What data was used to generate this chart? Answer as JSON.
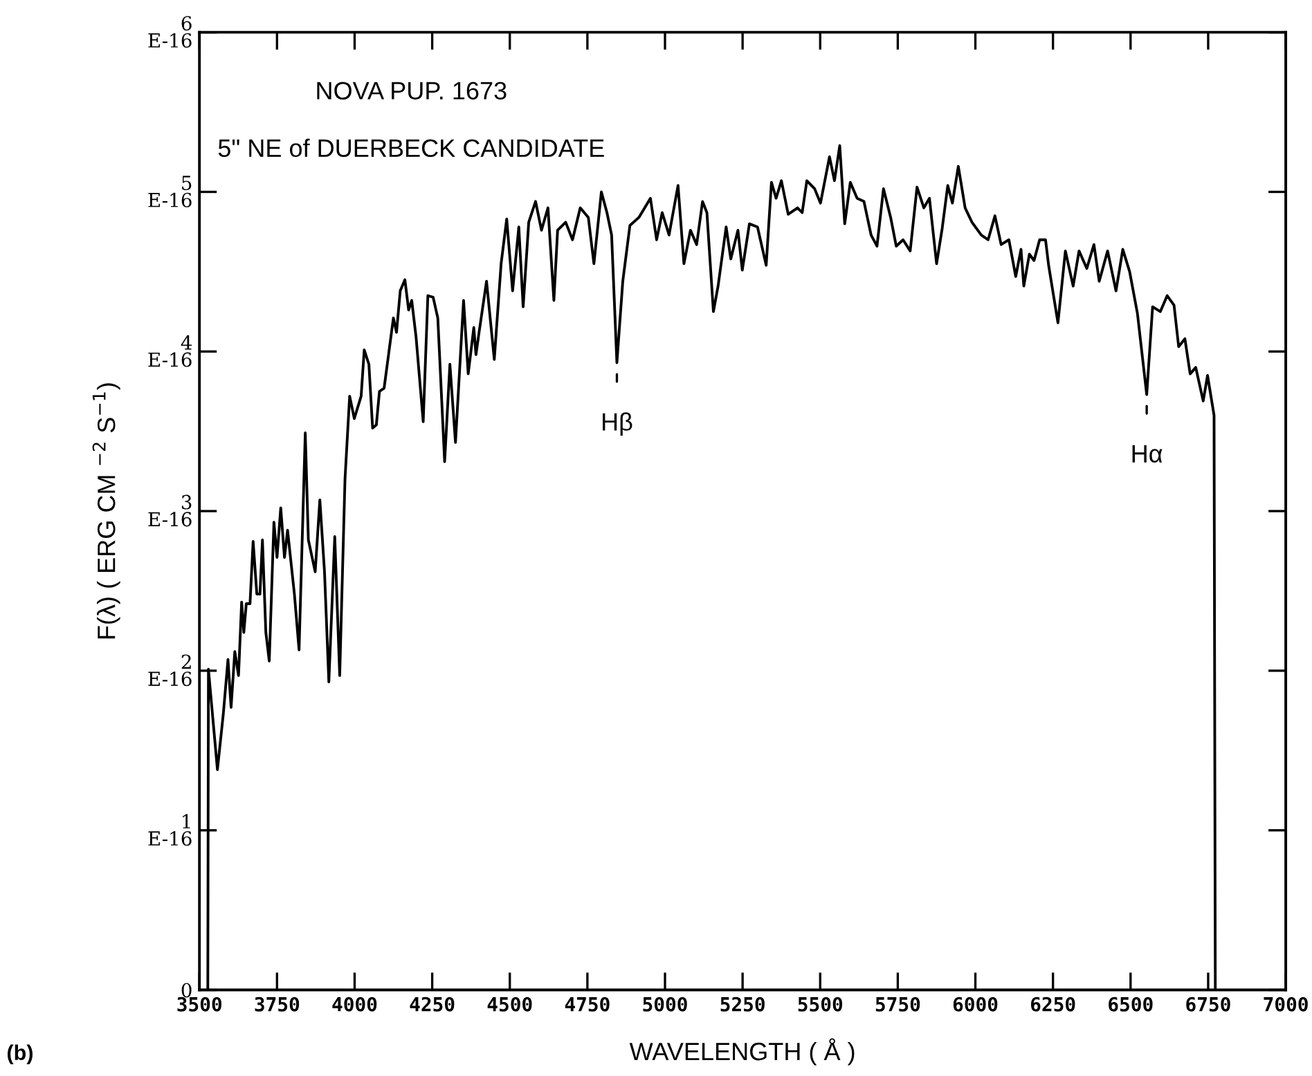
{
  "chart_data": {
    "type": "line",
    "title": "NOVA PUP. 1673",
    "subtitle": "5\" NE of DUERBECK CANDIDATE",
    "xlabel": "WAVELENGTH ( Å )",
    "ylabel": "F(λ) ( ERG CM $^{−2}$ S$^{−1}$)",
    "annotations": [
      {
        "text": "Hβ",
        "x": 4845,
        "y": 3.93e-16
      },
      {
        "text": "Hα",
        "x": 6552,
        "y": 3.73e-16
      },
      "(b)"
    ],
    "xlim": [
      3500,
      7000
    ],
    "xticks": [
      3500,
      3750,
      4000,
      4250,
      4500,
      4750,
      5000,
      5250,
      5500,
      5750,
      6000,
      6250,
      6500,
      6750,
      7000
    ],
    "ylim": [
      0,
      6e-16
    ],
    "yticks": [
      0,
      {
        "value": 1e-16,
        "label": "1E-16"
      },
      {
        "value": 2e-16,
        "label": "2E-16"
      },
      {
        "value": 3e-16,
        "label": "3E-16"
      },
      {
        "value": 4e-16,
        "label": "4E-16"
      },
      {
        "value": 5e-16,
        "label": "5E-16"
      },
      {
        "value": 6e-16,
        "label": "6E-16"
      }
    ],
    "grid": false,
    "marker": "none",
    "line_style": "solid",
    "series": [
      {
        "color": "#000000",
        "x": [
          3527,
          3529,
          3558,
          3577,
          3592,
          3602,
          3614,
          3626,
          3636,
          3643,
          3651,
          3663,
          3673,
          3685,
          3695,
          3703,
          3714,
          3725,
          3740,
          3750,
          3762,
          3774,
          3784,
          3806,
          3821,
          3841,
          3851,
          3873,
          3888,
          3903,
          3917,
          3936,
          3952,
          3969,
          3984,
          3999,
          4021,
          4031,
          4046,
          4058,
          4070,
          4080,
          4095,
          4125,
          4135,
          4147,
          4162,
          4174,
          4184,
          4198,
          4221,
          4236,
          4253,
          4268,
          4290,
          4307,
          4325,
          4351,
          4366,
          4384,
          4391,
          4401,
          4425,
          4450,
          4472,
          4490,
          4509,
          4529,
          4543,
          4561,
          4583,
          4602,
          4623,
          4642,
          4654,
          4680,
          4702,
          4727,
          4753,
          4771,
          4795,
          4813,
          4828,
          4845,
          4864,
          4887,
          4916,
          4953,
          4973,
          4991,
          5013,
          5042,
          5061,
          5082,
          5102,
          5121,
          5135,
          5156,
          5171,
          5197,
          5212,
          5235,
          5249,
          5272,
          5298,
          5326,
          5343,
          5358,
          5375,
          5397,
          5427,
          5442,
          5457,
          5482,
          5501,
          5530,
          5546,
          5563,
          5579,
          5597,
          5619,
          5641,
          5664,
          5683,
          5704,
          5727,
          5745,
          5767,
          5790,
          5812,
          5834,
          5852,
          5875,
          5893,
          5911,
          5926,
          5945,
          5967,
          5989,
          6019,
          6041,
          6063,
          6083,
          6108,
          6130,
          6147,
          6156,
          6174,
          6189,
          6207,
          6226,
          6236,
          6266,
          6290,
          6315,
          6334,
          6359,
          6382,
          6399,
          6426,
          6453,
          6475,
          6497,
          6522,
          6552,
          6571,
          6596,
          6618,
          6640,
          6655,
          6675,
          6692,
          6710,
          6734,
          6748,
          6769,
          6773
        ],
        "values": [
          0,
          2.01e-16,
          1.38e-16,
          1.73e-16,
          2.07e-16,
          1.77e-16,
          2.12e-16,
          1.97e-16,
          2.43e-16,
          2.24e-16,
          2.42e-16,
          2.42e-16,
          2.81e-16,
          2.48e-16,
          2.48e-16,
          2.82e-16,
          2.24e-16,
          2.06e-16,
          2.93e-16,
          2.71e-16,
          3.02e-16,
          2.71e-16,
          2.88e-16,
          2.48e-16,
          2.13e-16,
          3.49e-16,
          2.82e-16,
          2.62e-16,
          3.07e-16,
          2.62e-16,
          1.93e-16,
          2.84e-16,
          1.97e-16,
          3.2e-16,
          3.72e-16,
          3.58e-16,
          3.72e-16,
          4.01e-16,
          3.92e-16,
          3.52e-16,
          3.54e-16,
          3.75e-16,
          3.77e-16,
          4.21e-16,
          4.12e-16,
          4.38e-16,
          4.45e-16,
          4.26e-16,
          4.32e-16,
          4.09e-16,
          3.56e-16,
          4.35e-16,
          4.34e-16,
          4.21e-16,
          3.31e-16,
          3.92e-16,
          3.43e-16,
          4.32e-16,
          3.86e-16,
          4.15e-16,
          3.98e-16,
          4.12e-16,
          4.44e-16,
          3.95e-16,
          4.55e-16,
          4.83e-16,
          4.38e-16,
          4.78e-16,
          4.28e-16,
          4.81e-16,
          4.94e-16,
          4.76e-16,
          4.9e-16,
          4.32e-16,
          4.76e-16,
          4.81e-16,
          4.7e-16,
          4.9e-16,
          4.84e-16,
          4.55e-16,
          5e-16,
          4.87e-16,
          4.73e-16,
          3.93e-16,
          4.44e-16,
          4.79e-16,
          4.84e-16,
          4.96e-16,
          4.7e-16,
          4.87e-16,
          4.73e-16,
          5.04e-16,
          4.55e-16,
          4.76e-16,
          4.67e-16,
          4.94e-16,
          4.87e-16,
          4.25e-16,
          4.41e-16,
          4.78e-16,
          4.58e-16,
          4.76e-16,
          4.51e-16,
          4.8e-16,
          4.78e-16,
          4.54e-16,
          5.06e-16,
          4.96e-16,
          5.07e-16,
          4.86e-16,
          4.9e-16,
          4.87e-16,
          5.07e-16,
          5.02e-16,
          4.93e-16,
          5.22e-16,
          5.07e-16,
          5.29e-16,
          4.8e-16,
          5.06e-16,
          4.96e-16,
          4.94e-16,
          4.73e-16,
          4.66e-16,
          5.02e-16,
          4.84e-16,
          4.66e-16,
          4.7e-16,
          4.63e-16,
          5.03e-16,
          4.9e-16,
          4.96e-16,
          4.55e-16,
          4.77e-16,
          5.04e-16,
          4.93e-16,
          5.16e-16,
          4.9e-16,
          4.81e-16,
          4.73e-16,
          4.7e-16,
          4.85e-16,
          4.67e-16,
          4.7e-16,
          4.47e-16,
          4.64e-16,
          4.41e-16,
          4.61e-16,
          4.57e-16,
          4.7e-16,
          4.7e-16,
          4.54e-16,
          4.18e-16,
          4.63e-16,
          4.41e-16,
          4.63e-16,
          4.52e-16,
          4.67e-16,
          4.44e-16,
          4.63e-16,
          4.38e-16,
          4.64e-16,
          4.5e-16,
          4.24e-16,
          3.73e-16,
          4.28e-16,
          4.25e-16,
          4.35e-16,
          4.29e-16,
          4.03e-16,
          4.08e-16,
          3.86e-16,
          3.9e-16,
          3.69e-16,
          3.85e-16,
          3.6e-16,
          0
        ]
      }
    ]
  }
}
